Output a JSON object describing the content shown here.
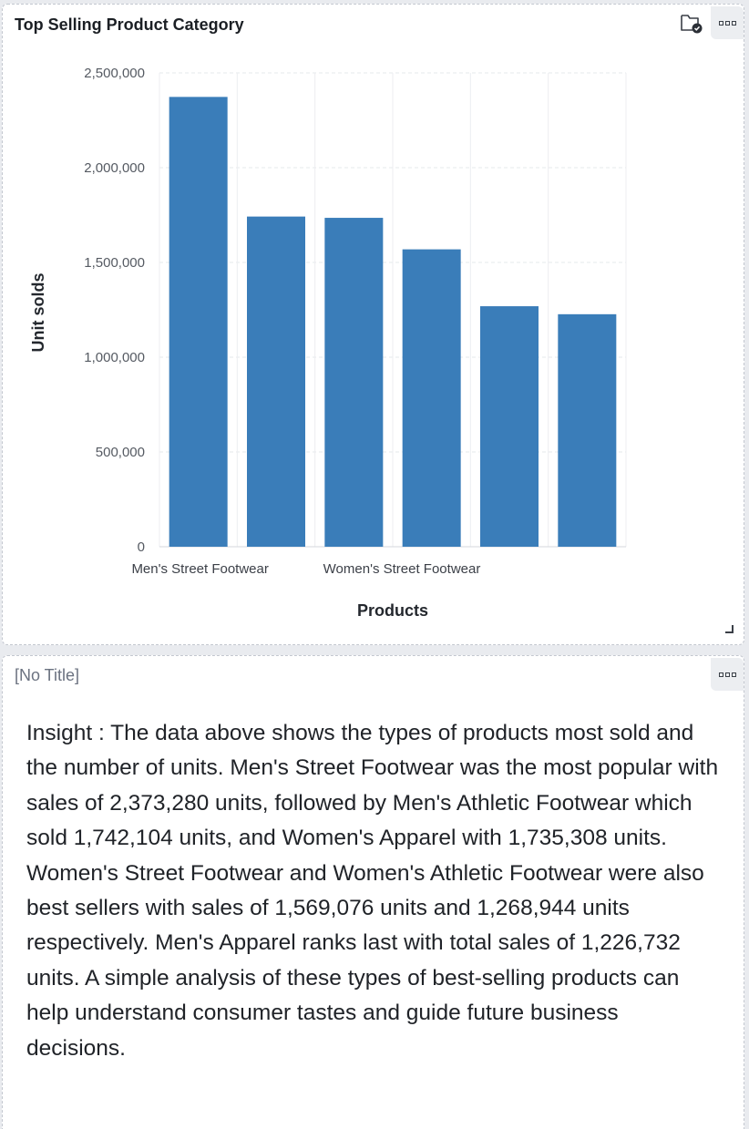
{
  "chart_panel": {
    "title": "Top Selling Product Category"
  },
  "chart_data": {
    "type": "bar",
    "categories": [
      "Men's Street Footwear",
      "Men's Athletic Footwear",
      "Women's Apparel",
      "Women's Street Footwear",
      "Women's Athletic Footwear",
      "Men's Apparel"
    ],
    "values": [
      2373280,
      1742104,
      1735308,
      1569076,
      1268944,
      1226732
    ],
    "visible_x_labels": [
      "Men's Street Footwear",
      "",
      "",
      "Women's Street Footwear",
      "",
      ""
    ],
    "xlabel": "Products",
    "ylabel": "Unit solds",
    "ylim": [
      0,
      2500000
    ],
    "yticks": [
      0,
      500000,
      1000000,
      1500000,
      2000000,
      2500000
    ],
    "ytick_labels": [
      "0",
      "500,000",
      "1,000,000",
      "1,500,000",
      "2,000,000",
      "2,500,000"
    ],
    "bar_color": "#3a7db9",
    "grid": true,
    "legend": "none"
  },
  "text_panel": {
    "title": "[No Title]",
    "insight": "Insight : The data above shows the types of products most sold and the number of units. Men's Street Footwear was the most popular with sales of 2,373,280 units, followed by Men's Athletic Footwear which sold 1,742,104 units, and Women's Apparel with 1,735,308 units. Women's Street Footwear and Women's Athletic Footwear were also best sellers with sales of 1,569,076 units and 1,268,944 units respectively. Men's Apparel ranks last with total sales of 1,226,732 units. A simple analysis of these types of best-selling products can help understand consumer tastes and guide future business decisions."
  }
}
